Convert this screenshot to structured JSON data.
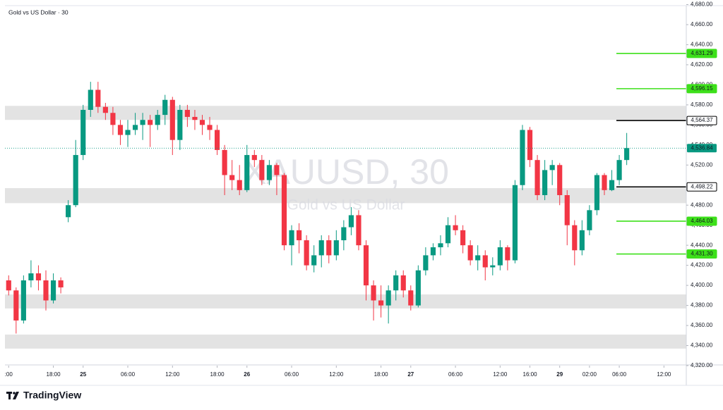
{
  "chart_data": {
    "type": "candlestick",
    "title": "Gold vs US Dollar · 30",
    "watermark": "XAUUSD, 30",
    "watermark_subtitle": "Gold vs US Dollar",
    "brand": "TradingView",
    "up_color": "#089981",
    "down_color": "#f23645",
    "open": [
      4405,
      4395,
      4365,
      4405,
      4412,
      4405,
      4385,
      4405,
      4468,
      4480,
      4530,
      4575,
      4595,
      4578,
      4572,
      4560,
      4550,
      4555,
      4560,
      4565,
      4560,
      4570,
      4585,
      4545,
      4575,
      4568,
      4565,
      4560,
      4555,
      4535,
      4510,
      4505,
      4495,
      4530,
      4525,
      4505,
      4520,
      4510,
      4440,
      4455,
      4445,
      4420,
      4430,
      4445,
      4430,
      4445,
      4458,
      4470,
      4440,
      4400,
      4385,
      4380,
      4395,
      4410,
      4395,
      4380,
      4415,
      4430,
      4438,
      4442,
      4460,
      4455,
      4440,
      4425,
      4430,
      4418,
      4420,
      4438,
      4425,
      4500,
      4555,
      4525,
      4490,
      4515,
      4520,
      4490,
      4460,
      4435,
      4455,
      4475,
      4510,
      4495,
      4505,
      4525
    ],
    "high": [
      4410,
      4398,
      4410,
      4425,
      4420,
      4415,
      4412,
      4408,
      4485,
      4545,
      4580,
      4603,
      4603,
      4582,
      4578,
      4565,
      4565,
      4572,
      4572,
      4570,
      4575,
      4590,
      4588,
      4580,
      4580,
      4575,
      4570,
      4568,
      4560,
      4540,
      4525,
      4520,
      4540,
      4535,
      4530,
      4525,
      4522,
      4512,
      4460,
      4462,
      4450,
      4440,
      4450,
      4450,
      4455,
      4465,
      4478,
      4475,
      4445,
      4405,
      4400,
      4400,
      4415,
      4415,
      4400,
      4420,
      4438,
      4442,
      4450,
      4468,
      4470,
      4460,
      4445,
      4440,
      4435,
      4428,
      4445,
      4440,
      4505,
      4560,
      4558,
      4530,
      4525,
      4525,
      4522,
      4495,
      4465,
      4465,
      4480,
      4512,
      4512,
      4515,
      4530,
      4552
    ],
    "low": [
      4390,
      4352,
      4362,
      4398,
      4395,
      4375,
      4382,
      4392,
      4463,
      4478,
      4525,
      4568,
      4572,
      4565,
      4550,
      4540,
      4538,
      4550,
      4545,
      4538,
      4555,
      4560,
      4530,
      4535,
      4558,
      4555,
      4550,
      4545,
      4530,
      4490,
      4495,
      4490,
      4493,
      4518,
      4500,
      4500,
      4490,
      4435,
      4420,
      4432,
      4415,
      4413,
      4418,
      4422,
      4425,
      4435,
      4450,
      4435,
      4385,
      4365,
      4368,
      4362,
      4385,
      4388,
      4375,
      4378,
      4410,
      4425,
      4430,
      4438,
      4450,
      4432,
      4420,
      4415,
      4405,
      4410,
      4415,
      4415,
      4422,
      4495,
      4518,
      4485,
      4485,
      4500,
      4480,
      4440,
      4420,
      4430,
      4450,
      4470,
      4490,
      4494,
      4500,
      4520
    ],
    "close": [
      4395,
      4365,
      4405,
      4412,
      4405,
      4385,
      4405,
      4398,
      4480,
      4530,
      4575,
      4595,
      4578,
      4572,
      4560,
      4550,
      4555,
      4560,
      4565,
      4560,
      4570,
      4585,
      4545,
      4575,
      4568,
      4565,
      4560,
      4555,
      4535,
      4510,
      4505,
      4495,
      4530,
      4525,
      4505,
      4520,
      4510,
      4440,
      4455,
      4445,
      4420,
      4430,
      4445,
      4430,
      4445,
      4458,
      4470,
      4440,
      4400,
      4385,
      4380,
      4395,
      4410,
      4395,
      4380,
      4415,
      4430,
      4438,
      4442,
      4460,
      4455,
      4440,
      4425,
      4430,
      4418,
      4420,
      4438,
      4425,
      4500,
      4555,
      4525,
      4490,
      4515,
      4520,
      4490,
      4460,
      4435,
      4455,
      4475,
      4510,
      4495,
      4505,
      4525,
      4536.84
    ],
    "xlim": [
      0,
      91.5
    ],
    "xticks": [
      {
        "value": 0.5,
        "label": ":00"
      },
      {
        "value": 6.5,
        "label": "18:00"
      },
      {
        "value": 10.5,
        "label": "25"
      },
      {
        "value": 16.5,
        "label": "06:00"
      },
      {
        "value": 22.5,
        "label": "12:00"
      },
      {
        "value": 28.5,
        "label": "18:00"
      },
      {
        "value": 32.5,
        "label": "26"
      },
      {
        "value": 38.5,
        "label": "06:00"
      },
      {
        "value": 44.5,
        "label": "12:00"
      },
      {
        "value": 50.5,
        "label": "18:00"
      },
      {
        "value": 54.5,
        "label": "27"
      },
      {
        "value": 60.5,
        "label": "06:00"
      },
      {
        "value": 66.5,
        "label": "12:00"
      },
      {
        "value": 70.5,
        "label": "16:00"
      },
      {
        "value": 74.5,
        "label": "29"
      },
      {
        "value": 78.5,
        "label": "02:00"
      },
      {
        "value": 82.5,
        "label": "06:00"
      },
      {
        "value": 88.5,
        "label": "12:00"
      }
    ],
    "ylim": [
      4320,
      4680
    ],
    "yticks": [
      {
        "value": 4320,
        "label": "4,320.00"
      },
      {
        "value": 4340,
        "label": "4,340.00"
      },
      {
        "value": 4360,
        "label": "4,360.00"
      },
      {
        "value": 4380,
        "label": "4,380.00"
      },
      {
        "value": 4400,
        "label": "4,400.00"
      },
      {
        "value": 4420,
        "label": "4,420.00"
      },
      {
        "value": 4440,
        "label": "4,440.00"
      },
      {
        "value": 4460,
        "label": "4,460.00"
      },
      {
        "value": 4480,
        "label": "4,480.00"
      },
      {
        "value": 4500,
        "label": "4,500.00"
      },
      {
        "value": 4520,
        "label": "4,520.00"
      },
      {
        "value": 4540,
        "label": "4,540.00"
      },
      {
        "value": 4560,
        "label": "4,560.00"
      },
      {
        "value": 4580,
        "label": "4,580.00"
      },
      {
        "value": 4600,
        "label": "4,600.00"
      },
      {
        "value": 4620,
        "label": "4,620.00"
      },
      {
        "value": 4640,
        "label": "4,640.00"
      },
      {
        "value": 4660,
        "label": "4,660.00"
      },
      {
        "value": 4680,
        "label": "4,680.00"
      }
    ],
    "zones": [
      [
        4565,
        4579
      ],
      [
        4482,
        4497
      ],
      [
        4377,
        4391
      ],
      [
        4337,
        4351
      ]
    ],
    "zone_color": "#e3e3e3",
    "levels": [
      {
        "value": 4631.29,
        "label": "4,631.29",
        "color": "#3de01a"
      },
      {
        "value": 4596.15,
        "label": "4,596.15",
        "color": "#3de01a"
      },
      {
        "value": 4564.37,
        "label": "4,564.37",
        "color": "#000000"
      },
      {
        "value": 4498.22,
        "label": "4,498.22",
        "color": "#000000"
      },
      {
        "value": 4464.03,
        "label": "4,464.03",
        "color": "#3de01a"
      },
      {
        "value": 4431.3,
        "label": "4,431.30",
        "color": "#3de01a"
      }
    ],
    "last_price": {
      "value": 4536.84,
      "label": "4,536.84",
      "color": "#089981"
    }
  }
}
